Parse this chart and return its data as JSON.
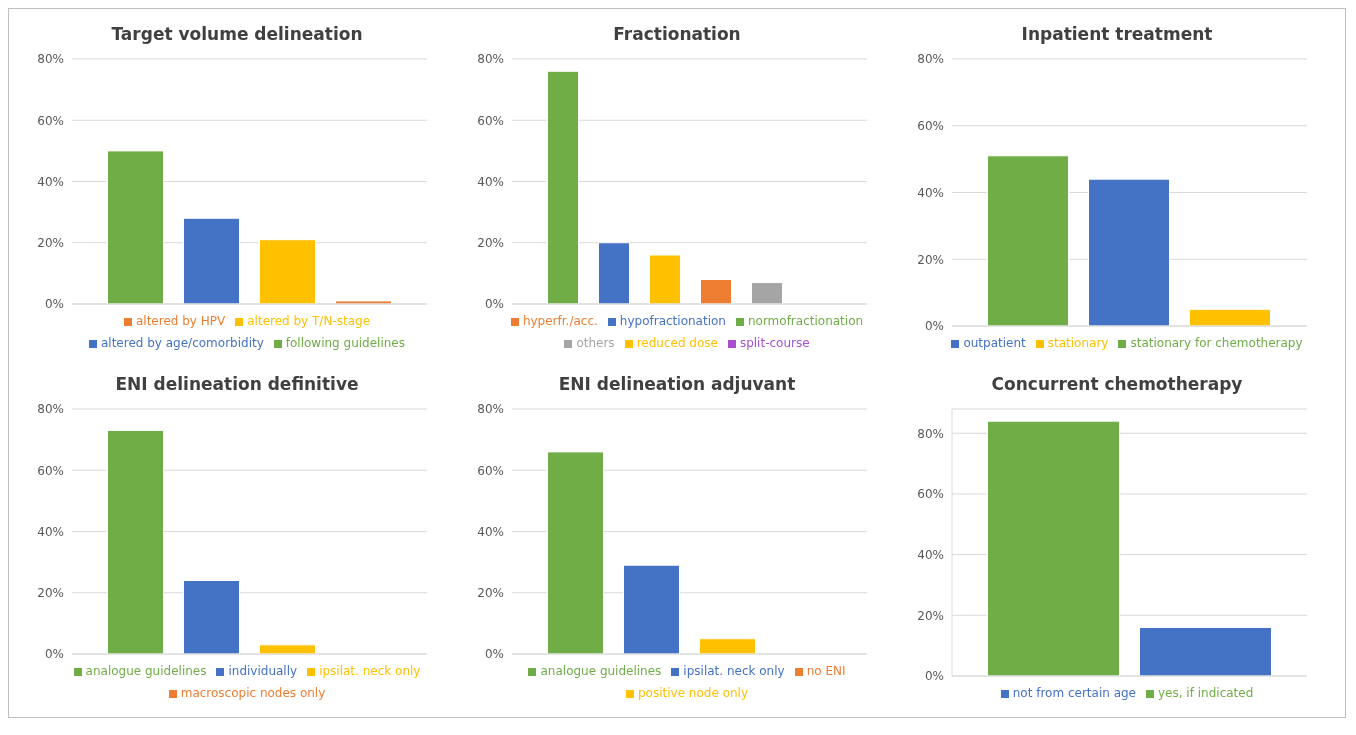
{
  "chart_data": [
    {
      "type": "bar",
      "title": "Target volume delineation",
      "categories": [
        null
      ],
      "series": [
        {
          "name": "following guidelines",
          "color": "#70ad47",
          "values": [
            50
          ]
        },
        {
          "name": "altered by age/comorbidity",
          "color": "#4472c4",
          "values": [
            28
          ]
        },
        {
          "name": "altered by T/N-stage",
          "color": "#ffc000",
          "values": [
            21
          ]
        },
        {
          "name": "altered by HPV",
          "color": "#ed7d31",
          "values": [
            1
          ]
        }
      ],
      "ylim": [
        0,
        80
      ],
      "yticks": [
        {
          "value": 0,
          "label": "0%"
        },
        {
          "value": 20,
          "label": "20%"
        },
        {
          "value": 40,
          "label": "40%"
        },
        {
          "value": 60,
          "label": "60%"
        },
        {
          "value": 80,
          "label": "80%"
        }
      ],
      "grid": "y",
      "legend": "bottom"
    },
    {
      "type": "bar",
      "title": "Fractionation",
      "categories": [
        null
      ],
      "series": [
        {
          "name": "normofractionation",
          "color": "#70ad47",
          "values": [
            76
          ]
        },
        {
          "name": "hypofractionation",
          "color": "#4472c4",
          "values": [
            20
          ]
        },
        {
          "name": "reduced dose",
          "color": "#ffc000",
          "values": [
            16
          ]
        },
        {
          "name": "hyperfr./acc.",
          "color": "#ed7d31",
          "values": [
            8
          ]
        },
        {
          "name": "others",
          "color": "#a5a5a5",
          "values": [
            7
          ]
        },
        {
          "name": "split-course",
          "color": "#a74fd1",
          "values": [
            0
          ]
        }
      ],
      "ylim": [
        0,
        80
      ],
      "yticks": [
        {
          "value": 0,
          "label": "0%"
        },
        {
          "value": 20,
          "label": "20%"
        },
        {
          "value": 40,
          "label": "40%"
        },
        {
          "value": 60,
          "label": "60%"
        },
        {
          "value": 80,
          "label": "80%"
        }
      ],
      "grid": "y",
      "legend": "bottom"
    },
    {
      "type": "bar",
      "title": "Inpatient treatment",
      "categories": [
        null
      ],
      "series": [
        {
          "name": "stationary for chemotherapy",
          "color": "#70ad47",
          "values": [
            51
          ]
        },
        {
          "name": "outpatient",
          "color": "#4472c4",
          "values": [
            44
          ]
        },
        {
          "name": "stationary",
          "color": "#ffc000",
          "values": [
            5
          ]
        }
      ],
      "ylim": [
        0,
        80
      ],
      "yticks": [
        {
          "value": 0,
          "label": "0%"
        },
        {
          "value": 20,
          "label": "20%"
        },
        {
          "value": 40,
          "label": "40%"
        },
        {
          "value": 60,
          "label": "60%"
        },
        {
          "value": 80,
          "label": "80%"
        }
      ],
      "grid": "y",
      "legend": "bottom"
    },
    {
      "type": "bar",
      "title": "ENI delineation definitive",
      "categories": [
        null
      ],
      "series": [
        {
          "name": "analogue guidelines",
          "color": "#70ad47",
          "values": [
            73
          ]
        },
        {
          "name": "individually",
          "color": "#4472c4",
          "values": [
            24
          ]
        },
        {
          "name": "ipsilat. neck only",
          "color": "#ffc000",
          "values": [
            3
          ]
        },
        {
          "name": "macroscopic nodes only",
          "color": "#ed7d31",
          "values": [
            0
          ]
        }
      ],
      "ylim": [
        0,
        80
      ],
      "yticks": [
        {
          "value": 0,
          "label": "0%"
        },
        {
          "value": 20,
          "label": "20%"
        },
        {
          "value": 40,
          "label": "40%"
        },
        {
          "value": 60,
          "label": "60%"
        },
        {
          "value": 80,
          "label": "80%"
        }
      ],
      "grid": "y",
      "legend": "bottom"
    },
    {
      "type": "bar",
      "title": "ENI delineation adjuvant",
      "categories": [
        null
      ],
      "series": [
        {
          "name": "analogue guidelines",
          "color": "#70ad47",
          "values": [
            66
          ]
        },
        {
          "name": "ipsilat. neck only",
          "color": "#4472c4",
          "values": [
            29
          ]
        },
        {
          "name": "positive node only",
          "color": "#ffc000",
          "values": [
            5
          ]
        },
        {
          "name": "no ENI",
          "color": "#ed7d31",
          "values": [
            0
          ]
        }
      ],
      "ylim": [
        0,
        80
      ],
      "yticks": [
        {
          "value": 0,
          "label": "0%"
        },
        {
          "value": 20,
          "label": "20%"
        },
        {
          "value": 40,
          "label": "40%"
        },
        {
          "value": 60,
          "label": "60%"
        },
        {
          "value": 80,
          "label": "80%"
        }
      ],
      "grid": "y",
      "legend": "bottom"
    },
    {
      "type": "bar",
      "title": "Concurrent chemotherapy",
      "categories": [
        null
      ],
      "series": [
        {
          "name": "yes, if indicated",
          "color": "#70ad47",
          "values": [
            84
          ]
        },
        {
          "name": "not from certain age",
          "color": "#4472c4",
          "values": [
            16
          ]
        }
      ],
      "ylim": [
        0,
        88
      ],
      "yticks": [
        {
          "value": 0,
          "label": "0%"
        },
        {
          "value": 20,
          "label": "20%"
        },
        {
          "value": 40,
          "label": "40%"
        },
        {
          "value": 60,
          "label": "60%"
        },
        {
          "value": 80,
          "label": "80%"
        }
      ],
      "grid": "y",
      "legend": "bottom"
    }
  ]
}
